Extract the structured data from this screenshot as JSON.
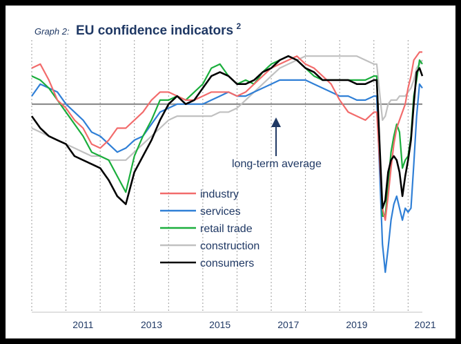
{
  "chart_data": {
    "type": "line",
    "title_prefix": "Graph 2:",
    "title": "EU confidence indicators",
    "title_superscript": "2",
    "x_tick_labels": [
      "2011",
      "2013",
      "2015",
      "2017",
      "2019",
      "2021"
    ],
    "x_range": [
      "2010-01",
      "2021-06"
    ],
    "y_range": [
      -5.2,
      1.6
    ],
    "y_axis_labels_shown": false,
    "reference_line": {
      "value": 0,
      "label": "long-term average",
      "color": "#808080"
    },
    "grid": "vertical dotted year lines",
    "legend_position": "bottom-left",
    "series": [
      {
        "name": "industry",
        "color": "#f26b6b",
        "points": [
          [
            "2010-01",
            0.9
          ],
          [
            "2010-04",
            1.0
          ],
          [
            "2010-07",
            0.6
          ],
          [
            "2010-10",
            0.1
          ],
          [
            "2011-01",
            -0.1
          ],
          [
            "2011-04",
            -0.4
          ],
          [
            "2011-07",
            -0.6
          ],
          [
            "2011-10",
            -1.0
          ],
          [
            "2012-01",
            -1.1
          ],
          [
            "2012-04",
            -0.9
          ],
          [
            "2012-07",
            -0.6
          ],
          [
            "2012-10",
            -0.6
          ],
          [
            "2013-01",
            -0.4
          ],
          [
            "2013-04",
            -0.2
          ],
          [
            "2013-07",
            0.1
          ],
          [
            "2013-10",
            0.3
          ],
          [
            "2014-01",
            0.3
          ],
          [
            "2014-04",
            0.2
          ],
          [
            "2014-07",
            0.1
          ],
          [
            "2014-10",
            0.1
          ],
          [
            "2015-01",
            0.2
          ],
          [
            "2015-04",
            0.3
          ],
          [
            "2015-07",
            0.3
          ],
          [
            "2015-10",
            0.3
          ],
          [
            "2016-01",
            0.2
          ],
          [
            "2016-04",
            0.3
          ],
          [
            "2016-07",
            0.5
          ],
          [
            "2016-10",
            0.7
          ],
          [
            "2017-01",
            0.9
          ],
          [
            "2017-04",
            1.0
          ],
          [
            "2017-07",
            1.1
          ],
          [
            "2017-10",
            1.2
          ],
          [
            "2018-01",
            1.0
          ],
          [
            "2018-04",
            0.9
          ],
          [
            "2018-07",
            0.7
          ],
          [
            "2018-10",
            0.5
          ],
          [
            "2019-01",
            0.1
          ],
          [
            "2019-04",
            -0.2
          ],
          [
            "2019-07",
            -0.3
          ],
          [
            "2019-10",
            -0.4
          ],
          [
            "2020-01",
            -0.2
          ],
          [
            "2020-02",
            -0.2
          ],
          [
            "2020-04",
            -2.6
          ],
          [
            "2020-05",
            -2.9
          ],
          [
            "2020-06",
            -2.3
          ],
          [
            "2020-07",
            -1.6
          ],
          [
            "2020-08",
            -1.0
          ],
          [
            "2020-09",
            -0.6
          ],
          [
            "2020-10",
            -0.4
          ],
          [
            "2020-12",
            0.0
          ],
          [
            "2021-01",
            0.4
          ],
          [
            "2021-02",
            0.7
          ],
          [
            "2021-03",
            1.1
          ],
          [
            "2021-04",
            1.2
          ],
          [
            "2021-05",
            1.3
          ],
          [
            "2021-06",
            1.3
          ]
        ]
      },
      {
        "name": "services",
        "color": "#2f7fd6",
        "points": [
          [
            "2010-01",
            0.2
          ],
          [
            "2010-04",
            0.5
          ],
          [
            "2010-07",
            0.4
          ],
          [
            "2010-10",
            0.3
          ],
          [
            "2011-01",
            0.0
          ],
          [
            "2011-04",
            -0.2
          ],
          [
            "2011-07",
            -0.4
          ],
          [
            "2011-10",
            -0.7
          ],
          [
            "2012-01",
            -0.8
          ],
          [
            "2012-04",
            -1.0
          ],
          [
            "2012-07",
            -1.2
          ],
          [
            "2012-10",
            -1.1
          ],
          [
            "2013-01",
            -0.9
          ],
          [
            "2013-04",
            -0.8
          ],
          [
            "2013-07",
            -0.5
          ],
          [
            "2013-10",
            -0.2
          ],
          [
            "2014-01",
            -0.1
          ],
          [
            "2014-04",
            0.0
          ],
          [
            "2014-07",
            0.0
          ],
          [
            "2014-10",
            0.0
          ],
          [
            "2015-01",
            0.0
          ],
          [
            "2015-04",
            0.1
          ],
          [
            "2015-07",
            0.2
          ],
          [
            "2015-10",
            0.3
          ],
          [
            "2016-01",
            0.2
          ],
          [
            "2016-04",
            0.2
          ],
          [
            "2016-07",
            0.3
          ],
          [
            "2016-10",
            0.4
          ],
          [
            "2017-01",
            0.5
          ],
          [
            "2017-04",
            0.6
          ],
          [
            "2017-07",
            0.6
          ],
          [
            "2017-10",
            0.6
          ],
          [
            "2018-01",
            0.6
          ],
          [
            "2018-04",
            0.5
          ],
          [
            "2018-07",
            0.4
          ],
          [
            "2018-10",
            0.3
          ],
          [
            "2019-01",
            0.2
          ],
          [
            "2019-04",
            0.2
          ],
          [
            "2019-07",
            0.1
          ],
          [
            "2019-10",
            0.1
          ],
          [
            "2020-01",
            0.2
          ],
          [
            "2020-02",
            0.2
          ],
          [
            "2020-04",
            -3.5
          ],
          [
            "2020-05",
            -4.2
          ],
          [
            "2020-06",
            -3.6
          ],
          [
            "2020-07",
            -2.9
          ],
          [
            "2020-08",
            -2.5
          ],
          [
            "2020-09",
            -2.3
          ],
          [
            "2020-10",
            -2.6
          ],
          [
            "2020-11",
            -2.9
          ],
          [
            "2020-12",
            -2.6
          ],
          [
            "2021-01",
            -2.7
          ],
          [
            "2021-02",
            -2.6
          ],
          [
            "2021-03",
            -1.5
          ],
          [
            "2021-04",
            -0.3
          ],
          [
            "2021-05",
            0.5
          ],
          [
            "2021-06",
            0.4
          ]
        ]
      },
      {
        "name": "retail trade",
        "color": "#1aae3c",
        "points": [
          [
            "2010-01",
            0.7
          ],
          [
            "2010-04",
            0.6
          ],
          [
            "2010-07",
            0.4
          ],
          [
            "2010-10",
            0.1
          ],
          [
            "2011-01",
            -0.2
          ],
          [
            "2011-04",
            -0.5
          ],
          [
            "2011-07",
            -0.8
          ],
          [
            "2011-10",
            -1.2
          ],
          [
            "2012-01",
            -1.3
          ],
          [
            "2012-04",
            -1.4
          ],
          [
            "2012-07",
            -1.8
          ],
          [
            "2012-10",
            -2.2
          ],
          [
            "2013-01",
            -1.3
          ],
          [
            "2013-04",
            -0.8
          ],
          [
            "2013-07",
            -0.4
          ],
          [
            "2013-10",
            0.1
          ],
          [
            "2014-01",
            0.1
          ],
          [
            "2014-04",
            0.2
          ],
          [
            "2014-07",
            0.1
          ],
          [
            "2014-10",
            0.3
          ],
          [
            "2015-01",
            0.5
          ],
          [
            "2015-04",
            0.9
          ],
          [
            "2015-07",
            1.0
          ],
          [
            "2015-10",
            0.7
          ],
          [
            "2016-01",
            0.5
          ],
          [
            "2016-04",
            0.6
          ],
          [
            "2016-07",
            0.5
          ],
          [
            "2016-10",
            0.8
          ],
          [
            "2017-01",
            1.0
          ],
          [
            "2017-04",
            1.1
          ],
          [
            "2017-07",
            1.2
          ],
          [
            "2017-10",
            1.1
          ],
          [
            "2018-01",
            0.9
          ],
          [
            "2018-04",
            0.7
          ],
          [
            "2018-07",
            0.6
          ],
          [
            "2018-10",
            0.6
          ],
          [
            "2019-01",
            0.6
          ],
          [
            "2019-04",
            0.6
          ],
          [
            "2019-07",
            0.6
          ],
          [
            "2019-10",
            0.6
          ],
          [
            "2020-01",
            0.7
          ],
          [
            "2020-02",
            0.7
          ],
          [
            "2020-04",
            -2.8
          ],
          [
            "2020-05",
            -2.8
          ],
          [
            "2020-06",
            -2.0
          ],
          [
            "2020-07",
            -1.2
          ],
          [
            "2020-08",
            -0.8
          ],
          [
            "2020-09",
            -0.5
          ],
          [
            "2020-10",
            -0.7
          ],
          [
            "2020-11",
            -1.6
          ],
          [
            "2020-12",
            -1.4
          ],
          [
            "2021-01",
            -1.3
          ],
          [
            "2021-02",
            -0.8
          ],
          [
            "2021-03",
            0.2
          ],
          [
            "2021-04",
            0.6
          ],
          [
            "2021-05",
            1.1
          ],
          [
            "2021-06",
            1.0
          ]
        ]
      },
      {
        "name": "construction",
        "color": "#c0c0c0",
        "points": [
          [
            "2010-01",
            -0.6
          ],
          [
            "2010-04",
            -0.7
          ],
          [
            "2010-07",
            -0.8
          ],
          [
            "2010-10",
            -0.9
          ],
          [
            "2011-01",
            -1.0
          ],
          [
            "2011-04",
            -1.1
          ],
          [
            "2011-07",
            -1.2
          ],
          [
            "2011-10",
            -1.3
          ],
          [
            "2012-01",
            -1.3
          ],
          [
            "2012-04",
            -1.4
          ],
          [
            "2012-07",
            -1.4
          ],
          [
            "2012-10",
            -1.4
          ],
          [
            "2013-01",
            -1.2
          ],
          [
            "2013-04",
            -1.0
          ],
          [
            "2013-07",
            -0.8
          ],
          [
            "2013-10",
            -0.6
          ],
          [
            "2014-01",
            -0.4
          ],
          [
            "2014-04",
            -0.3
          ],
          [
            "2014-07",
            -0.3
          ],
          [
            "2014-10",
            -0.3
          ],
          [
            "2015-01",
            -0.3
          ],
          [
            "2015-04",
            -0.3
          ],
          [
            "2015-07",
            -0.2
          ],
          [
            "2015-10",
            -0.2
          ],
          [
            "2016-01",
            -0.1
          ],
          [
            "2016-04",
            0.1
          ],
          [
            "2016-07",
            0.3
          ],
          [
            "2016-10",
            0.5
          ],
          [
            "2017-01",
            0.7
          ],
          [
            "2017-04",
            0.9
          ],
          [
            "2017-07",
            1.0
          ],
          [
            "2017-10",
            1.1
          ],
          [
            "2018-01",
            1.2
          ],
          [
            "2018-04",
            1.2
          ],
          [
            "2018-07",
            1.2
          ],
          [
            "2018-10",
            1.2
          ],
          [
            "2019-01",
            1.2
          ],
          [
            "2019-04",
            1.2
          ],
          [
            "2019-07",
            1.2
          ],
          [
            "2019-10",
            1.1
          ],
          [
            "2020-01",
            1.0
          ],
          [
            "2020-02",
            1.0
          ],
          [
            "2020-04",
            -0.4
          ],
          [
            "2020-05",
            -0.3
          ],
          [
            "2020-06",
            0.0
          ],
          [
            "2020-07",
            0.1
          ],
          [
            "2020-08",
            0.1
          ],
          [
            "2020-09",
            0.1
          ],
          [
            "2020-10",
            0.2
          ],
          [
            "2020-12",
            0.2
          ],
          [
            "2021-01",
            0.3
          ],
          [
            "2021-02",
            0.4
          ],
          [
            "2021-03",
            0.6
          ],
          [
            "2021-04",
            0.9
          ],
          [
            "2021-05",
            1.0
          ],
          [
            "2021-06",
            1.1
          ]
        ]
      },
      {
        "name": "consumers",
        "color": "#000000",
        "points": [
          [
            "2010-01",
            -0.3
          ],
          [
            "2010-04",
            -0.6
          ],
          [
            "2010-07",
            -0.8
          ],
          [
            "2010-10",
            -0.9
          ],
          [
            "2011-01",
            -1.0
          ],
          [
            "2011-04",
            -1.3
          ],
          [
            "2011-07",
            -1.4
          ],
          [
            "2011-10",
            -1.5
          ],
          [
            "2012-01",
            -1.6
          ],
          [
            "2012-04",
            -1.9
          ],
          [
            "2012-07",
            -2.3
          ],
          [
            "2012-10",
            -2.5
          ],
          [
            "2013-01",
            -1.7
          ],
          [
            "2013-04",
            -1.3
          ],
          [
            "2013-07",
            -0.9
          ],
          [
            "2013-10",
            -0.4
          ],
          [
            "2014-01",
            0.0
          ],
          [
            "2014-04",
            0.2
          ],
          [
            "2014-07",
            0.0
          ],
          [
            "2014-10",
            0.1
          ],
          [
            "2015-01",
            0.4
          ],
          [
            "2015-04",
            0.7
          ],
          [
            "2015-07",
            0.8
          ],
          [
            "2015-10",
            0.7
          ],
          [
            "2016-01",
            0.5
          ],
          [
            "2016-04",
            0.5
          ],
          [
            "2016-07",
            0.6
          ],
          [
            "2016-10",
            0.8
          ],
          [
            "2017-01",
            0.9
          ],
          [
            "2017-04",
            1.1
          ],
          [
            "2017-07",
            1.2
          ],
          [
            "2017-10",
            1.1
          ],
          [
            "2018-01",
            0.9
          ],
          [
            "2018-04",
            0.8
          ],
          [
            "2018-07",
            0.6
          ],
          [
            "2018-10",
            0.6
          ],
          [
            "2019-01",
            0.6
          ],
          [
            "2019-04",
            0.6
          ],
          [
            "2019-07",
            0.5
          ],
          [
            "2019-10",
            0.5
          ],
          [
            "2020-01",
            0.6
          ],
          [
            "2020-02",
            0.6
          ],
          [
            "2020-04",
            -2.6
          ],
          [
            "2020-05",
            -2.4
          ],
          [
            "2020-06",
            -1.7
          ],
          [
            "2020-07",
            -1.4
          ],
          [
            "2020-08",
            -1.3
          ],
          [
            "2020-09",
            -1.4
          ],
          [
            "2020-10",
            -1.7
          ],
          [
            "2020-11",
            -2.3
          ],
          [
            "2020-12",
            -1.8
          ],
          [
            "2021-01",
            -1.4
          ],
          [
            "2021-02",
            -0.9
          ],
          [
            "2021-03",
            0.0
          ],
          [
            "2021-04",
            0.8
          ],
          [
            "2021-05",
            0.9
          ],
          [
            "2021-06",
            0.7
          ]
        ]
      }
    ]
  }
}
